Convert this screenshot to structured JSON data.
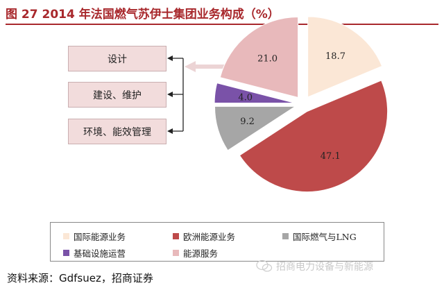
{
  "header": {
    "title": "图 27 2014 年法国燃气苏伊士集团业务构成（%）"
  },
  "services": {
    "items": [
      "设计",
      "建设、维护",
      "环境、能效管理"
    ]
  },
  "chart_data": {
    "type": "pie",
    "title": "图 27 2014 年法国燃气苏伊士集团业务构成（%）",
    "slices": [
      {
        "name": "国际能源业务",
        "value": 18.7,
        "label": "18.7",
        "color": "#fbe7d6"
      },
      {
        "name": "欧洲能源业务",
        "value": 47.1,
        "label": "47.1",
        "color": "#be4a4a"
      },
      {
        "name": "国际燃气与LNG",
        "value": 9.2,
        "label": "9.2",
        "color": "#a6a6a6"
      },
      {
        "name": "基础设施运营",
        "value": 4.0,
        "label": "4.0",
        "color": "#7a52a8"
      },
      {
        "name": "能源服务",
        "value": 21.0,
        "label": "21.0",
        "color": "#e8b9bb"
      }
    ],
    "legend_position": "bottom",
    "exploded": true
  },
  "legend": {
    "items": [
      {
        "label": "国际能源业务",
        "color": "#fbe7d6"
      },
      {
        "label": "欧洲能源业务",
        "color": "#be4a4a"
      },
      {
        "label": "国际燃气与LNG",
        "color": "#a6a6a6"
      },
      {
        "label": "基础设施运营",
        "color": "#7a52a8"
      },
      {
        "label": "能源服务",
        "color": "#e8b9bb"
      }
    ]
  },
  "footer": {
    "source": "资料来源：Gdfsuez，招商证券",
    "watermark": "招商电力设备与新能源",
    "watermark_icon": "wechat-icon"
  }
}
